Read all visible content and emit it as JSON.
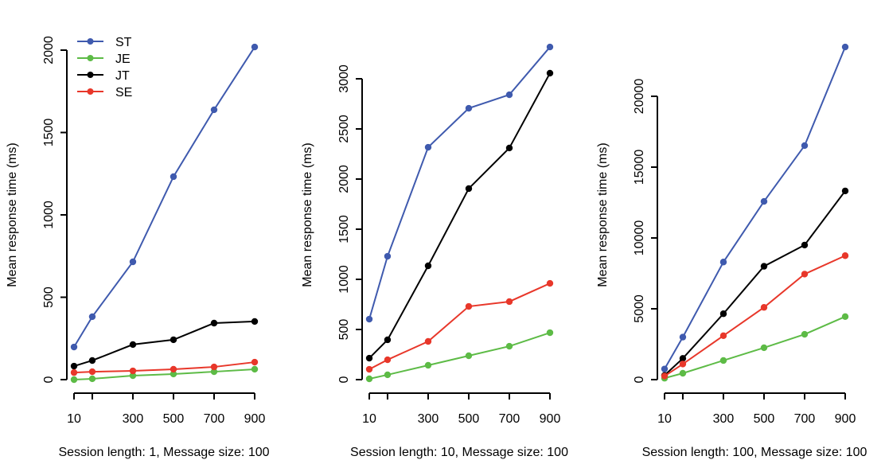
{
  "legend": {
    "placement": "top-left",
    "entries": [
      {
        "name": "ST",
        "color": "#3F5AAE"
      },
      {
        "name": "JE",
        "color": "#5DBB46"
      },
      {
        "name": "JT",
        "color": "#000000"
      },
      {
        "name": "SE",
        "color": "#E8372A"
      }
    ]
  },
  "chart_data": [
    {
      "type": "line",
      "title": "",
      "xlabel": "Session length: 1, Message size: 100",
      "ylabel": "Mean response time (ms)",
      "x": [
        10,
        100,
        300,
        500,
        700,
        900
      ],
      "xticks": [
        10,
        100,
        300,
        500,
        700,
        900
      ],
      "xtick_labels": [
        "10",
        "",
        "300",
        "500",
        "700",
        "900"
      ],
      "xlim": [
        10,
        900
      ],
      "ylim": [
        0,
        2000
      ],
      "yticks": [
        0,
        500,
        1000,
        1500,
        2000
      ],
      "ytick_labels": [
        "0",
        "500",
        "1000",
        "1500",
        "2000"
      ],
      "grid": false,
      "legend": "top-left",
      "series": [
        {
          "name": "ST",
          "color": "#3F5AAE",
          "values": [
            198,
            382,
            715,
            1232,
            1638,
            2019
          ]
        },
        {
          "name": "JE",
          "color": "#5DBB46",
          "values": [
            0,
            5,
            24,
            34,
            48,
            63
          ]
        },
        {
          "name": "JT",
          "color": "#000000",
          "values": [
            82,
            116,
            213,
            242,
            343,
            353
          ]
        },
        {
          "name": "SE",
          "color": "#E8372A",
          "values": [
            43,
            48,
            53,
            63,
            77,
            106
          ]
        }
      ]
    },
    {
      "type": "line",
      "title": "",
      "xlabel": "Session length: 10, Message size: 100",
      "ylabel": "Mean response time (ms)",
      "x": [
        10,
        100,
        300,
        500,
        700,
        900
      ],
      "xticks": [
        10,
        100,
        300,
        500,
        700,
        900
      ],
      "xtick_labels": [
        "10",
        "",
        "300",
        "500",
        "700",
        "900"
      ],
      "xlim": [
        10,
        900
      ],
      "ylim": [
        0,
        3000
      ],
      "yticks": [
        0,
        500,
        1000,
        1500,
        2000,
        2500,
        3000
      ],
      "ytick_labels": [
        "0",
        "500",
        "1000",
        "1500",
        "2000",
        "2500",
        "3000"
      ],
      "grid": false,
      "series": [
        {
          "name": "ST",
          "color": "#3F5AAE",
          "values": [
            603,
            1230,
            2317,
            2706,
            2841,
            3317
          ]
        },
        {
          "name": "JE",
          "color": "#5DBB46",
          "values": [
            8,
            48,
            143,
            238,
            333,
            468
          ]
        },
        {
          "name": "JT",
          "color": "#000000",
          "values": [
            214,
            397,
            1135,
            1905,
            2310,
            3056
          ]
        },
        {
          "name": "SE",
          "color": "#E8372A",
          "values": [
            103,
            198,
            381,
            730,
            778,
            960
          ]
        }
      ]
    },
    {
      "type": "line",
      "title": "",
      "xlabel": "Session length: 100, Message size: 100",
      "ylabel": "Mean response time (ms)",
      "x": [
        10,
        100,
        300,
        500,
        700,
        900
      ],
      "xticks": [
        10,
        100,
        300,
        500,
        700,
        900
      ],
      "xtick_labels": [
        "10",
        "",
        "300",
        "500",
        "700",
        "900"
      ],
      "xlim": [
        10,
        900
      ],
      "ylim": [
        0,
        20000
      ],
      "yticks": [
        0,
        5000,
        10000,
        15000,
        20000
      ],
      "ytick_labels": [
        "0",
        "5000",
        "10000",
        "15000",
        "20000"
      ],
      "grid": false,
      "series": [
        {
          "name": "ST",
          "color": "#3F5AAE",
          "values": [
            750,
            3000,
            8300,
            12580,
            16520,
            23480
          ]
        },
        {
          "name": "JE",
          "color": "#5DBB46",
          "values": [
            100,
            450,
            1350,
            2250,
            3200,
            4450
          ]
        },
        {
          "name": "JT",
          "color": "#000000",
          "values": [
            300,
            1500,
            4650,
            8000,
            9500,
            13320
          ]
        },
        {
          "name": "SE",
          "color": "#E8372A",
          "values": [
            250,
            1100,
            3100,
            5100,
            7450,
            8750
          ]
        }
      ]
    }
  ]
}
